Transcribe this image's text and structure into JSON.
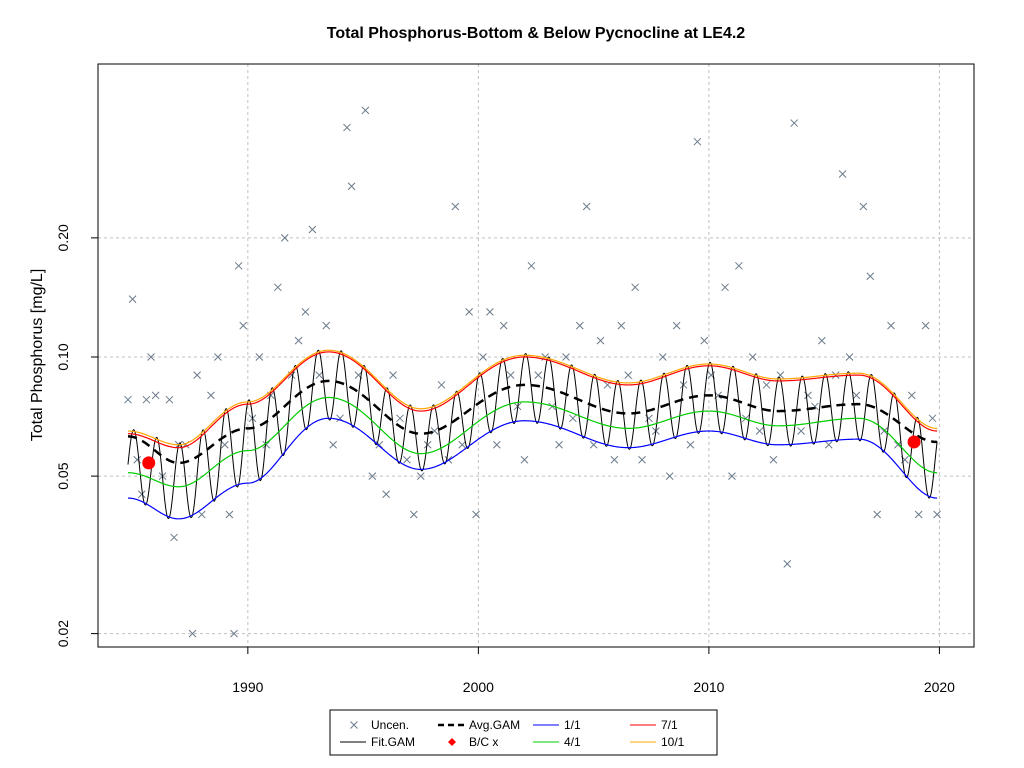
{
  "chart_data": {
    "type": "scatter",
    "title": "Total Phosphorus-Bottom & Below Pycnocline at LE4.2",
    "xlabel": "",
    "ylabel": "Total Phosphorus [mg/L]",
    "xlim": [
      1983.5,
      2021.5
    ],
    "ylim": [
      0.0185,
      0.55
    ],
    "yscale": "log",
    "x_ticks": [
      1990,
      2000,
      2010,
      2020
    ],
    "y_ticks": [
      0.02,
      0.05,
      0.1,
      0.2
    ],
    "y_tick_labels": [
      "0.02",
      "0.05",
      "0.10",
      "0.20"
    ],
    "grid": true,
    "legend_position": "bottom-center",
    "legend": [
      {
        "label": "Uncen.",
        "kind": "x-marker",
        "color": "#6b7b8b"
      },
      {
        "label": "Fit.GAM",
        "kind": "line",
        "color": "#000000"
      },
      {
        "label": "Avg.GAM",
        "kind": "dashed-line",
        "color": "#000000"
      },
      {
        "label": "B/C x",
        "kind": "dot",
        "color": "#ff0000"
      },
      {
        "label": "1/1",
        "kind": "line",
        "color": "#0000ff"
      },
      {
        "label": "4/1",
        "kind": "line",
        "color": "#00cc00"
      },
      {
        "label": "7/1",
        "kind": "line",
        "color": "#ff0000"
      },
      {
        "label": "10/1",
        "kind": "line",
        "color": "#ffa500"
      }
    ],
    "colors": {
      "uncen": "#6b7b8b",
      "fit": "#000000",
      "avg": "#000000",
      "bc": "#ff0000",
      "d1_1": "#0000ff",
      "d4_1": "#00cc00",
      "d7_1": "#ff0000",
      "d10_1": "#ffa500",
      "grid": "#c0c0c0"
    },
    "seasonal_curves_note_x": [
      1984.8,
      1987,
      1990,
      1993.5,
      1997.5,
      2002,
      2006.5,
      2010,
      2013,
      2016.5,
      2019.9
    ],
    "series": [
      {
        "name": "Avg.GAM",
        "y": [
          0.063,
          0.054,
          0.066,
          0.087,
          0.064,
          0.085,
          0.072,
          0.08,
          0.073,
          0.076,
          0.061
        ]
      },
      {
        "name": "1/1",
        "y": [
          0.044,
          0.039,
          0.048,
          0.07,
          0.052,
          0.069,
          0.059,
          0.065,
          0.06,
          0.062,
          0.044
        ]
      },
      {
        "name": "4/1",
        "y": [
          0.051,
          0.047,
          0.058,
          0.079,
          0.057,
          0.077,
          0.066,
          0.073,
          0.067,
          0.07,
          0.051
        ]
      },
      {
        "name": "7/1",
        "y": [
          0.064,
          0.059,
          0.076,
          0.103,
          0.073,
          0.1,
          0.085,
          0.095,
          0.087,
          0.09,
          0.065
        ]
      },
      {
        "name": "10/1",
        "y": [
          0.065,
          0.06,
          0.077,
          0.104,
          0.074,
          0.101,
          0.086,
          0.096,
          0.088,
          0.091,
          0.066
        ]
      }
    ],
    "bc_points": [
      {
        "x": 1985.7,
        "y": 0.054
      },
      {
        "x": 2018.9,
        "y": 0.061
      }
    ],
    "uncensored_points": [
      {
        "x": 1984.8,
        "y": 0.078
      },
      {
        "x": 1985.0,
        "y": 0.14
      },
      {
        "x": 1985.2,
        "y": 0.055
      },
      {
        "x": 1985.4,
        "y": 0.045
      },
      {
        "x": 1985.6,
        "y": 0.078
      },
      {
        "x": 1985.8,
        "y": 0.1
      },
      {
        "x": 1986.0,
        "y": 0.08
      },
      {
        "x": 1986.3,
        "y": 0.05
      },
      {
        "x": 1986.6,
        "y": 0.078
      },
      {
        "x": 1986.8,
        "y": 0.035
      },
      {
        "x": 1987.0,
        "y": 0.06
      },
      {
        "x": 1987.3,
        "y": 0.06
      },
      {
        "x": 1987.6,
        "y": 0.02
      },
      {
        "x": 1987.8,
        "y": 0.09
      },
      {
        "x": 1988.0,
        "y": 0.04
      },
      {
        "x": 1988.4,
        "y": 0.08
      },
      {
        "x": 1988.7,
        "y": 0.1
      },
      {
        "x": 1989.0,
        "y": 0.06
      },
      {
        "x": 1989.2,
        "y": 0.04
      },
      {
        "x": 1989.4,
        "y": 0.02
      },
      {
        "x": 1989.6,
        "y": 0.17
      },
      {
        "x": 1989.8,
        "y": 0.12
      },
      {
        "x": 1990.2,
        "y": 0.07
      },
      {
        "x": 1990.5,
        "y": 0.1
      },
      {
        "x": 1990.8,
        "y": 0.06
      },
      {
        "x": 1991.0,
        "y": 0.08
      },
      {
        "x": 1991.3,
        "y": 0.15
      },
      {
        "x": 1991.6,
        "y": 0.2
      },
      {
        "x": 1991.9,
        "y": 0.09
      },
      {
        "x": 1992.2,
        "y": 0.11
      },
      {
        "x": 1992.5,
        "y": 0.13
      },
      {
        "x": 1992.8,
        "y": 0.21
      },
      {
        "x": 1993.1,
        "y": 0.09
      },
      {
        "x": 1993.4,
        "y": 0.12
      },
      {
        "x": 1993.7,
        "y": 0.06
      },
      {
        "x": 1994.0,
        "y": 0.07
      },
      {
        "x": 1994.3,
        "y": 0.38
      },
      {
        "x": 1994.5,
        "y": 0.27
      },
      {
        "x": 1994.8,
        "y": 0.09
      },
      {
        "x": 1995.1,
        "y": 0.42
      },
      {
        "x": 1995.4,
        "y": 0.05
      },
      {
        "x": 1995.7,
        "y": 0.06
      },
      {
        "x": 1996.0,
        "y": 0.045
      },
      {
        "x": 1996.3,
        "y": 0.09
      },
      {
        "x": 1996.6,
        "y": 0.07
      },
      {
        "x": 1996.9,
        "y": 0.055
      },
      {
        "x": 1997.2,
        "y": 0.04
      },
      {
        "x": 1997.5,
        "y": 0.05
      },
      {
        "x": 1997.8,
        "y": 0.06
      },
      {
        "x": 1998.1,
        "y": 0.065
      },
      {
        "x": 1998.4,
        "y": 0.085
      },
      {
        "x": 1998.7,
        "y": 0.055
      },
      {
        "x": 1999.0,
        "y": 0.24
      },
      {
        "x": 1999.3,
        "y": 0.06
      },
      {
        "x": 1999.6,
        "y": 0.13
      },
      {
        "x": 1999.9,
        "y": 0.04
      },
      {
        "x": 2000.2,
        "y": 0.1
      },
      {
        "x": 2000.5,
        "y": 0.13
      },
      {
        "x": 2000.8,
        "y": 0.06
      },
      {
        "x": 2001.1,
        "y": 0.12
      },
      {
        "x": 2001.4,
        "y": 0.09
      },
      {
        "x": 2001.7,
        "y": 0.075
      },
      {
        "x": 2002.0,
        "y": 0.055
      },
      {
        "x": 2002.3,
        "y": 0.17
      },
      {
        "x": 2002.6,
        "y": 0.09
      },
      {
        "x": 2002.9,
        "y": 0.1
      },
      {
        "x": 2003.2,
        "y": 0.075
      },
      {
        "x": 2003.5,
        "y": 0.06
      },
      {
        "x": 2003.8,
        "y": 0.1
      },
      {
        "x": 2004.1,
        "y": 0.07
      },
      {
        "x": 2004.4,
        "y": 0.12
      },
      {
        "x": 2004.7,
        "y": 0.24
      },
      {
        "x": 2005.0,
        "y": 0.06
      },
      {
        "x": 2005.3,
        "y": 0.11
      },
      {
        "x": 2005.6,
        "y": 0.085
      },
      {
        "x": 2005.9,
        "y": 0.055
      },
      {
        "x": 2006.2,
        "y": 0.12
      },
      {
        "x": 2006.5,
        "y": 0.09
      },
      {
        "x": 2006.8,
        "y": 0.15
      },
      {
        "x": 2007.1,
        "y": 0.055
      },
      {
        "x": 2007.4,
        "y": 0.07
      },
      {
        "x": 2007.7,
        "y": 0.065
      },
      {
        "x": 2008.0,
        "y": 0.1
      },
      {
        "x": 2008.3,
        "y": 0.05
      },
      {
        "x": 2008.6,
        "y": 0.12
      },
      {
        "x": 2008.9,
        "y": 0.085
      },
      {
        "x": 2009.2,
        "y": 0.06
      },
      {
        "x": 2009.5,
        "y": 0.35
      },
      {
        "x": 2009.8,
        "y": 0.11
      },
      {
        "x": 2010.1,
        "y": 0.09
      },
      {
        "x": 2010.4,
        "y": 0.08
      },
      {
        "x": 2010.7,
        "y": 0.15
      },
      {
        "x": 2011.0,
        "y": 0.05
      },
      {
        "x": 2011.3,
        "y": 0.17
      },
      {
        "x": 2011.6,
        "y": 0.07
      },
      {
        "x": 2011.9,
        "y": 0.1
      },
      {
        "x": 2012.2,
        "y": 0.065
      },
      {
        "x": 2012.5,
        "y": 0.085
      },
      {
        "x": 2012.8,
        "y": 0.055
      },
      {
        "x": 2013.1,
        "y": 0.09
      },
      {
        "x": 2013.4,
        "y": 0.03
      },
      {
        "x": 2013.7,
        "y": 0.39
      },
      {
        "x": 2014.0,
        "y": 0.065
      },
      {
        "x": 2014.3,
        "y": 0.08
      },
      {
        "x": 2014.6,
        "y": 0.075
      },
      {
        "x": 2014.9,
        "y": 0.11
      },
      {
        "x": 2015.2,
        "y": 0.06
      },
      {
        "x": 2015.5,
        "y": 0.09
      },
      {
        "x": 2015.8,
        "y": 0.29
      },
      {
        "x": 2016.1,
        "y": 0.1
      },
      {
        "x": 2016.4,
        "y": 0.08
      },
      {
        "x": 2016.7,
        "y": 0.24
      },
      {
        "x": 2017.0,
        "y": 0.16
      },
      {
        "x": 2017.3,
        "y": 0.04
      },
      {
        "x": 2017.6,
        "y": 0.065
      },
      {
        "x": 2017.9,
        "y": 0.12
      },
      {
        "x": 2018.2,
        "y": 0.06
      },
      {
        "x": 2018.5,
        "y": 0.055
      },
      {
        "x": 2018.8,
        "y": 0.08
      },
      {
        "x": 2019.1,
        "y": 0.04
      },
      {
        "x": 2019.4,
        "y": 0.12
      },
      {
        "x": 2019.7,
        "y": 0.07
      },
      {
        "x": 2019.9,
        "y": 0.04
      }
    ]
  }
}
